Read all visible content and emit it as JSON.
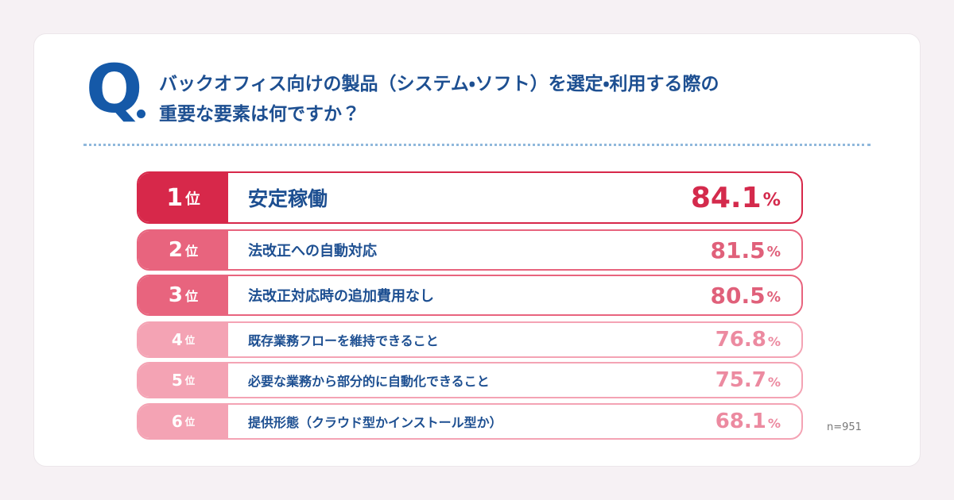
{
  "question": {
    "mark": "Q",
    "lines": [
      "バックオフィス向けの製品（システム・ソフト）を選定・利用する際の",
      "重要な要素は何ですか？"
    ]
  },
  "ranking": {
    "rows": [
      {
        "rank": "1",
        "suffix": "位",
        "label": "安定稼働",
        "value": 84.1,
        "unit": "%"
      },
      {
        "rank": "2",
        "suffix": "位",
        "label": "法改正への自動対応",
        "value": 81.5,
        "unit": "%"
      },
      {
        "rank": "3",
        "suffix": "位",
        "label": "法改正対応時の追加費用なし",
        "value": 80.5,
        "unit": "%"
      },
      {
        "rank": "4",
        "suffix": "位",
        "label": "既存業務フローを維持できること",
        "value": 76.8,
        "unit": "%"
      },
      {
        "rank": "5",
        "suffix": "位",
        "label": "必要な業務から部分的に自動化できること",
        "value": 75.7,
        "unit": "%"
      },
      {
        "rank": "6",
        "suffix": "位",
        "label": "提供形態（クラウド型かインストール型か）",
        "value": 68.1,
        "unit": "%"
      }
    ]
  },
  "note": "n=951"
}
